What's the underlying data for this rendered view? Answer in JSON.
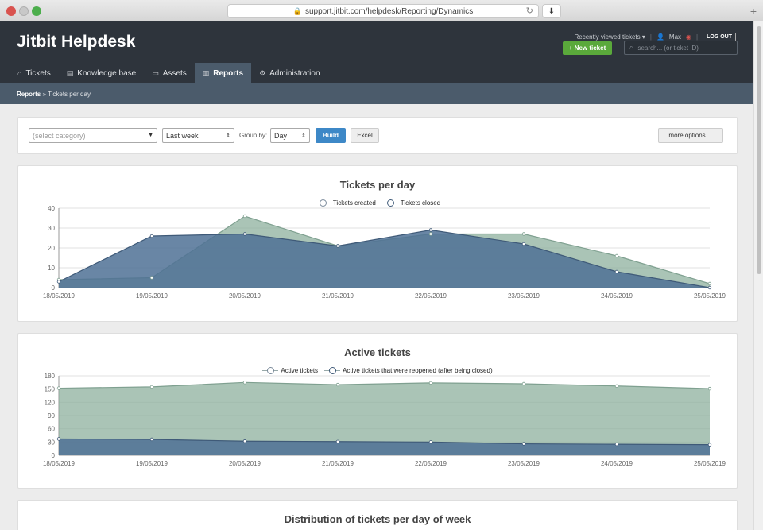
{
  "browser": {
    "url": "support.jitbit.com/helpdesk/Reporting/Dynamics"
  },
  "app": {
    "brand": "Jitbit Helpdesk",
    "recently_viewed": "Recently viewed tickets ▾",
    "user": "Max",
    "logout": "LOG OUT",
    "new_ticket": "+ New ticket",
    "search_placeholder": "search... (or ticket ID)"
  },
  "nav": {
    "items": [
      {
        "label": "Tickets",
        "icon": "ticket-icon",
        "glyph": "⌂"
      },
      {
        "label": "Knowledge base",
        "icon": "book-icon",
        "glyph": "▤"
      },
      {
        "label": "Assets",
        "icon": "laptop-icon",
        "glyph": "▭"
      },
      {
        "label": "Reports",
        "icon": "chart-icon",
        "glyph": "▥"
      },
      {
        "label": "Administration",
        "icon": "gear-icon",
        "glyph": "⚙"
      }
    ]
  },
  "breadcrumb": {
    "root": "Reports",
    "current": "» Tickets per day"
  },
  "filters": {
    "category_placeholder": "(select category)",
    "range": "Last week",
    "group_label": "Group by:",
    "group_value": "Day",
    "build": "Build",
    "excel": "Excel",
    "more": "more options ..."
  },
  "colors": {
    "green_fill": "#8eb09e",
    "blue_fill": "#4f7195",
    "green_line": "#7fa090",
    "blue_line": "#3f5a78"
  },
  "chart_data": [
    {
      "type": "area",
      "title": "Tickets per day",
      "categories": [
        "18/05/2019",
        "19/05/2019",
        "20/05/2019",
        "21/05/2019",
        "22/05/2019",
        "23/05/2019",
        "24/05/2019",
        "25/05/2019"
      ],
      "series": [
        {
          "name": "Tickets created",
          "values": [
            4,
            5,
            36,
            21,
            27,
            27,
            16,
            2
          ]
        },
        {
          "name": "Tickets closed",
          "values": [
            3,
            26,
            27,
            21,
            29,
            22,
            8,
            0
          ]
        }
      ],
      "ylim": [
        0,
        40
      ],
      "yticks": [
        0,
        10,
        20,
        30,
        40
      ],
      "legend": "top-center",
      "grid": true
    },
    {
      "type": "area",
      "title": "Active tickets",
      "categories": [
        "18/05/2019",
        "19/05/2019",
        "20/05/2019",
        "21/05/2019",
        "22/05/2019",
        "23/05/2019",
        "24/05/2019",
        "25/05/2019"
      ],
      "series": [
        {
          "name": "Active tickets",
          "values": [
            152,
            155,
            165,
            160,
            164,
            162,
            157,
            151
          ]
        },
        {
          "name": "Active tickets that were reopened (after being closed)",
          "values": [
            37,
            36,
            32,
            31,
            30,
            26,
            25,
            24
          ]
        }
      ],
      "ylim": [
        0,
        180
      ],
      "yticks": [
        0,
        30,
        60,
        90,
        120,
        150,
        180
      ],
      "legend": "top-center",
      "grid": true
    }
  ],
  "chart3_title": "Distribution of tickets per day of week"
}
